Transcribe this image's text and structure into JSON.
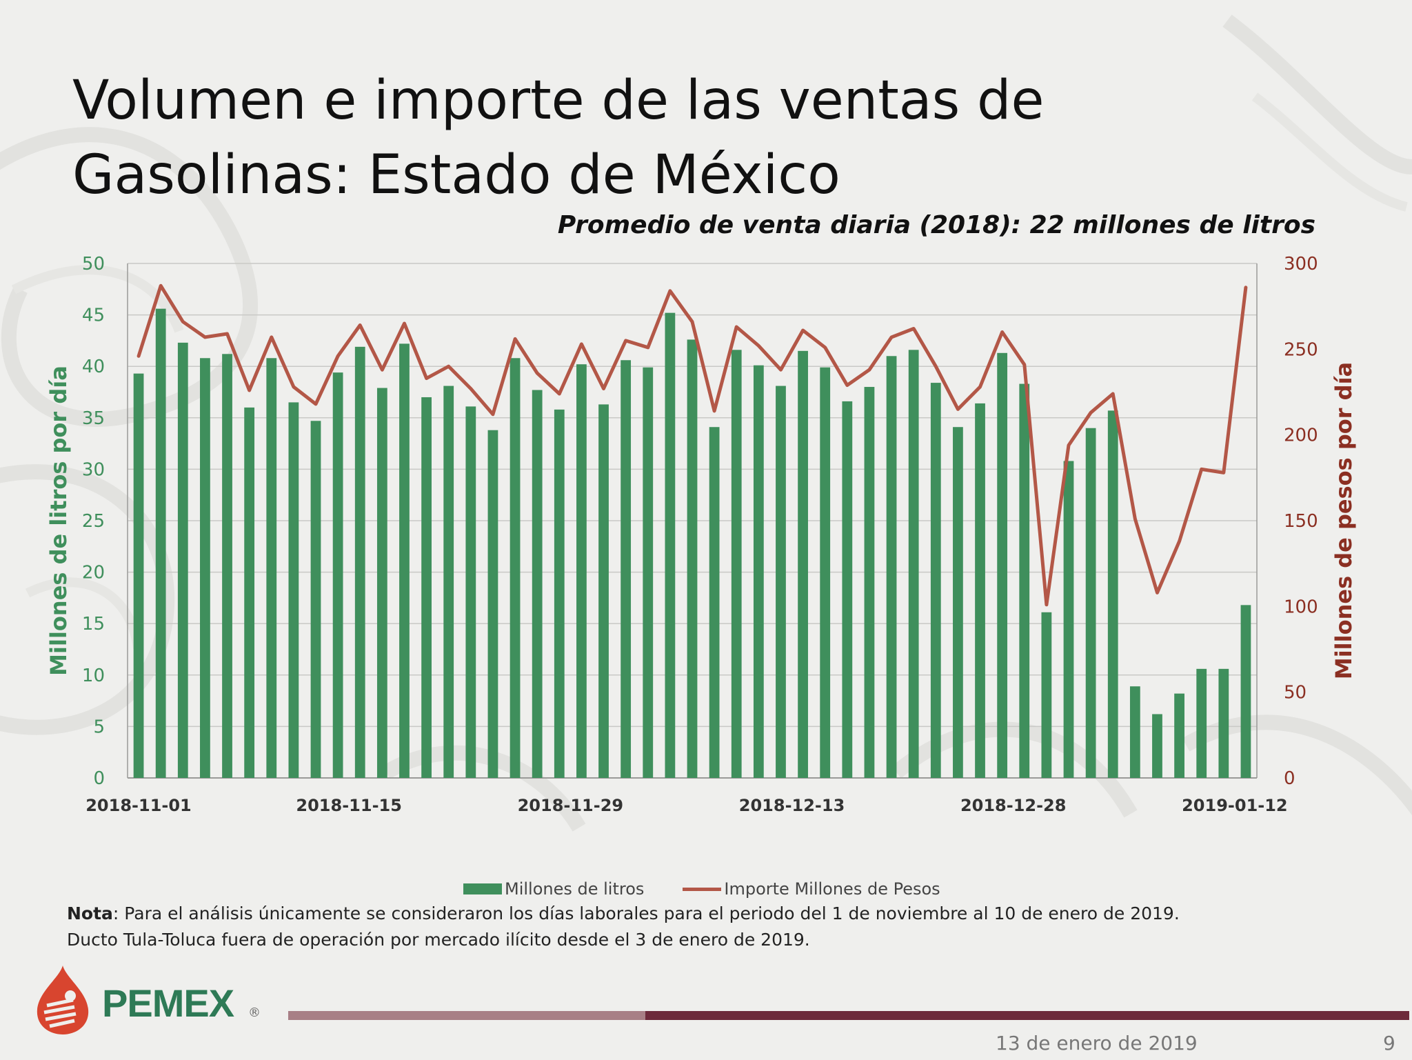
{
  "title_line1": "Volumen e importe de las ventas de",
  "title_line2": "Gasolinas: Estado de México",
  "subtitle": "Promedio de venta diaria (2018): 22 millones de litros",
  "note_label": "Nota",
  "note_text": ": Para el análisis únicamente se consideraron los días laborales para el periodo del 1 de noviembre al 10 de enero de 2019.",
  "note_line2": "Ducto Tula-Toluca fuera de operación por mercado ilícito desde el 3 de enero de 2019.",
  "footer": {
    "brand": "PEMEX",
    "registered": "®",
    "date": "13 de enero de 2019",
    "page": "9"
  },
  "colors": {
    "bars": "#3f8f5c",
    "line": "#b35747",
    "left_axis_text": "#3f8f5c",
    "right_axis_text": "#8b2f22",
    "footer_bar_light": "#a87f86",
    "footer_bar_dark": "#6d2a3b"
  },
  "chart_data": {
    "type": "bar",
    "x_tick_labels": [
      "2018-11-01",
      "2018-11-15",
      "2018-11-29",
      "2018-12-13",
      "2018-12-28",
      "2019-01-12"
    ],
    "ylabel": "Millones de litros por día",
    "y2label": "Millones de pesos por día",
    "ylim": [
      0,
      50
    ],
    "y2lim": [
      0,
      300
    ],
    "yticks": [
      "0",
      "5",
      "10",
      "15",
      "20",
      "25",
      "30",
      "35",
      "40",
      "45",
      "50"
    ],
    "y2ticks": [
      "0",
      "50",
      "100",
      "150",
      "200",
      "250",
      "300"
    ],
    "grid": true,
    "legend_position": "bottom",
    "series": [
      {
        "name": "Millones de litros",
        "type": "bar",
        "axis": "left",
        "values": [
          39.3,
          45.6,
          42.3,
          40.8,
          41.2,
          36.0,
          40.8,
          36.5,
          34.7,
          39.4,
          41.9,
          37.9,
          42.2,
          37.0,
          38.1,
          36.1,
          33.8,
          40.8,
          37.7,
          35.8,
          40.2,
          36.3,
          40.6,
          39.9,
          45.2,
          42.6,
          34.1,
          41.6,
          40.1,
          38.1,
          41.5,
          39.9,
          36.6,
          38.0,
          41.0,
          41.6,
          38.4,
          34.1,
          36.4,
          41.3,
          38.3,
          16.1,
          30.8,
          34.0,
          35.7,
          8.9,
          6.2,
          8.2,
          10.6,
          10.6,
          16.8
        ]
      },
      {
        "name": "Importe Millones de Pesos",
        "type": "line",
        "axis": "right",
        "values": [
          246,
          287,
          266,
          257,
          259,
          226,
          257,
          228,
          218,
          246,
          264,
          238,
          265,
          233,
          240,
          227,
          212,
          256,
          236,
          224,
          253,
          227,
          255,
          251,
          284,
          266,
          214,
          263,
          252,
          238,
          261,
          251,
          229,
          238,
          257,
          262,
          240,
          215,
          228,
          260,
          241,
          101,
          194,
          213,
          224,
          151,
          108,
          138,
          180,
          178,
          286
        ]
      }
    ]
  }
}
